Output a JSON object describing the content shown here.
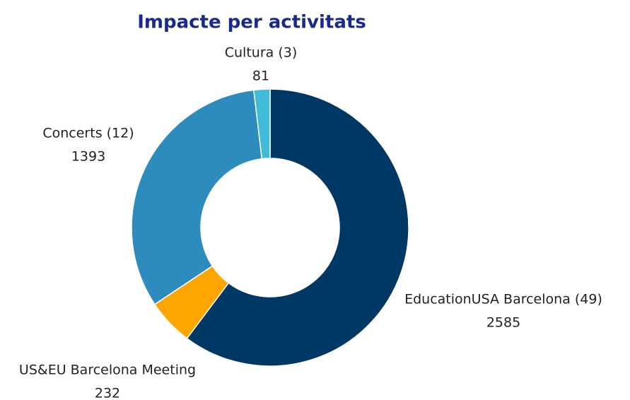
{
  "chart_data": {
    "type": "donut",
    "title": "Impacte per activitats",
    "categories": [
      "EducationUSA Barcelona (49)",
      "US&EU Barcelona Meeting",
      "Concerts (12)",
      "Cultura (3)"
    ],
    "values": [
      2585,
      232,
      1393,
      81
    ],
    "colors": [
      "#003865",
      "#ffa500",
      "#2e8bbd",
      "#40bcd8"
    ]
  }
}
